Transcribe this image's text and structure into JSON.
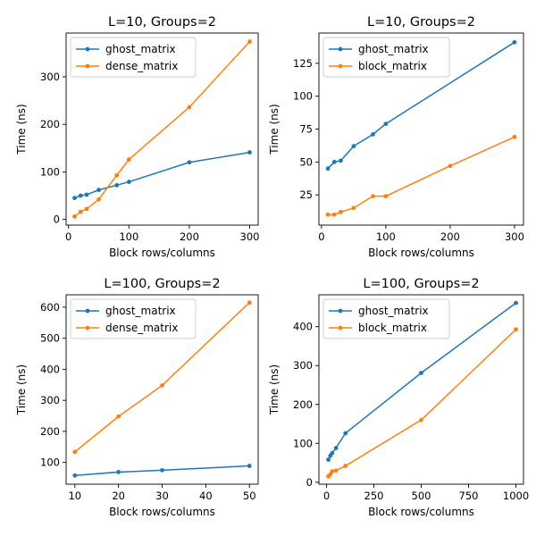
{
  "chart_data": [
    {
      "type": "line",
      "title": "L=10, Groups=2",
      "xlabel": "Block rows/columns",
      "ylabel": "Time (ns)",
      "xlim": [
        -4,
        314
      ],
      "ylim": [
        -12,
        392
      ],
      "xticks": [
        0,
        100,
        200,
        300
      ],
      "yticks": [
        0,
        100,
        200,
        300
      ],
      "legend": "top-left",
      "series": [
        {
          "name": "ghost_matrix",
          "color": "#1f77b4",
          "x": [
            10,
            20,
            30,
            50,
            80,
            100,
            200,
            300
          ],
          "y": [
            45,
            50,
            52,
            62,
            72,
            79,
            120,
            141
          ]
        },
        {
          "name": "dense_matrix",
          "color": "#ff7f0e",
          "x": [
            10,
            20,
            30,
            50,
            80,
            100,
            200,
            300
          ],
          "y": [
            6,
            16,
            22,
            42,
            93,
            126,
            236,
            374
          ]
        }
      ]
    },
    {
      "type": "line",
      "title": "L=10, Groups=2",
      "xlabel": "Block rows/columns",
      "ylabel": "Time (ns)",
      "xlim": [
        -4,
        314
      ],
      "ylim": [
        2,
        148
      ],
      "xticks": [
        0,
        100,
        200,
        300
      ],
      "yticks": [
        25,
        50,
        75,
        100,
        125
      ],
      "legend": "top-left",
      "series": [
        {
          "name": "ghost_matrix",
          "color": "#1f77b4",
          "x": [
            10,
            20,
            30,
            50,
            80,
            100,
            300
          ],
          "y": [
            45,
            50,
            51,
            62,
            71,
            79,
            141
          ]
        },
        {
          "name": "block_matrix",
          "color": "#ff7f0e",
          "x": [
            10,
            20,
            30,
            50,
            80,
            100,
            200,
            300
          ],
          "y": [
            10,
            10,
            12,
            15,
            24,
            24,
            47,
            69
          ]
        }
      ]
    },
    {
      "type": "line",
      "title": "L=100, Groups=2",
      "xlabel": "Block rows/columns",
      "ylabel": "Time (ns)",
      "xlim": [
        8,
        52
      ],
      "ylim": [
        30,
        640
      ],
      "xticks": [
        10,
        20,
        30,
        40,
        50
      ],
      "yticks": [
        100,
        200,
        300,
        400,
        500,
        600
      ],
      "legend": "top-left",
      "series": [
        {
          "name": "ghost_matrix",
          "color": "#1f77b4",
          "x": [
            10,
            20,
            30,
            50
          ],
          "y": [
            58,
            69,
            75,
            89
          ]
        },
        {
          "name": "dense_matrix",
          "color": "#ff7f0e",
          "x": [
            10,
            20,
            30,
            50
          ],
          "y": [
            134,
            248,
            348,
            615
          ]
        }
      ]
    },
    {
      "type": "line",
      "title": "L=100, Groups=2",
      "xlabel": "Block rows/columns",
      "ylabel": "Time (ns)",
      "xlim": [
        -40,
        1040
      ],
      "ylim": [
        -5,
        482
      ],
      "xticks": [
        0,
        250,
        500,
        750,
        1000
      ],
      "yticks": [
        0,
        100,
        200,
        300,
        400
      ],
      "legend": "top-left",
      "series": [
        {
          "name": "ghost_matrix",
          "color": "#1f77b4",
          "x": [
            10,
            20,
            30,
            50,
            100,
            500,
            1000
          ],
          "y": [
            58,
            68,
            75,
            88,
            126,
            281,
            461
          ]
        },
        {
          "name": "block_matrix",
          "color": "#ff7f0e",
          "x": [
            10,
            20,
            30,
            50,
            100,
            500,
            1000
          ],
          "y": [
            15,
            20,
            28,
            30,
            42,
            160,
            393
          ]
        }
      ]
    }
  ]
}
